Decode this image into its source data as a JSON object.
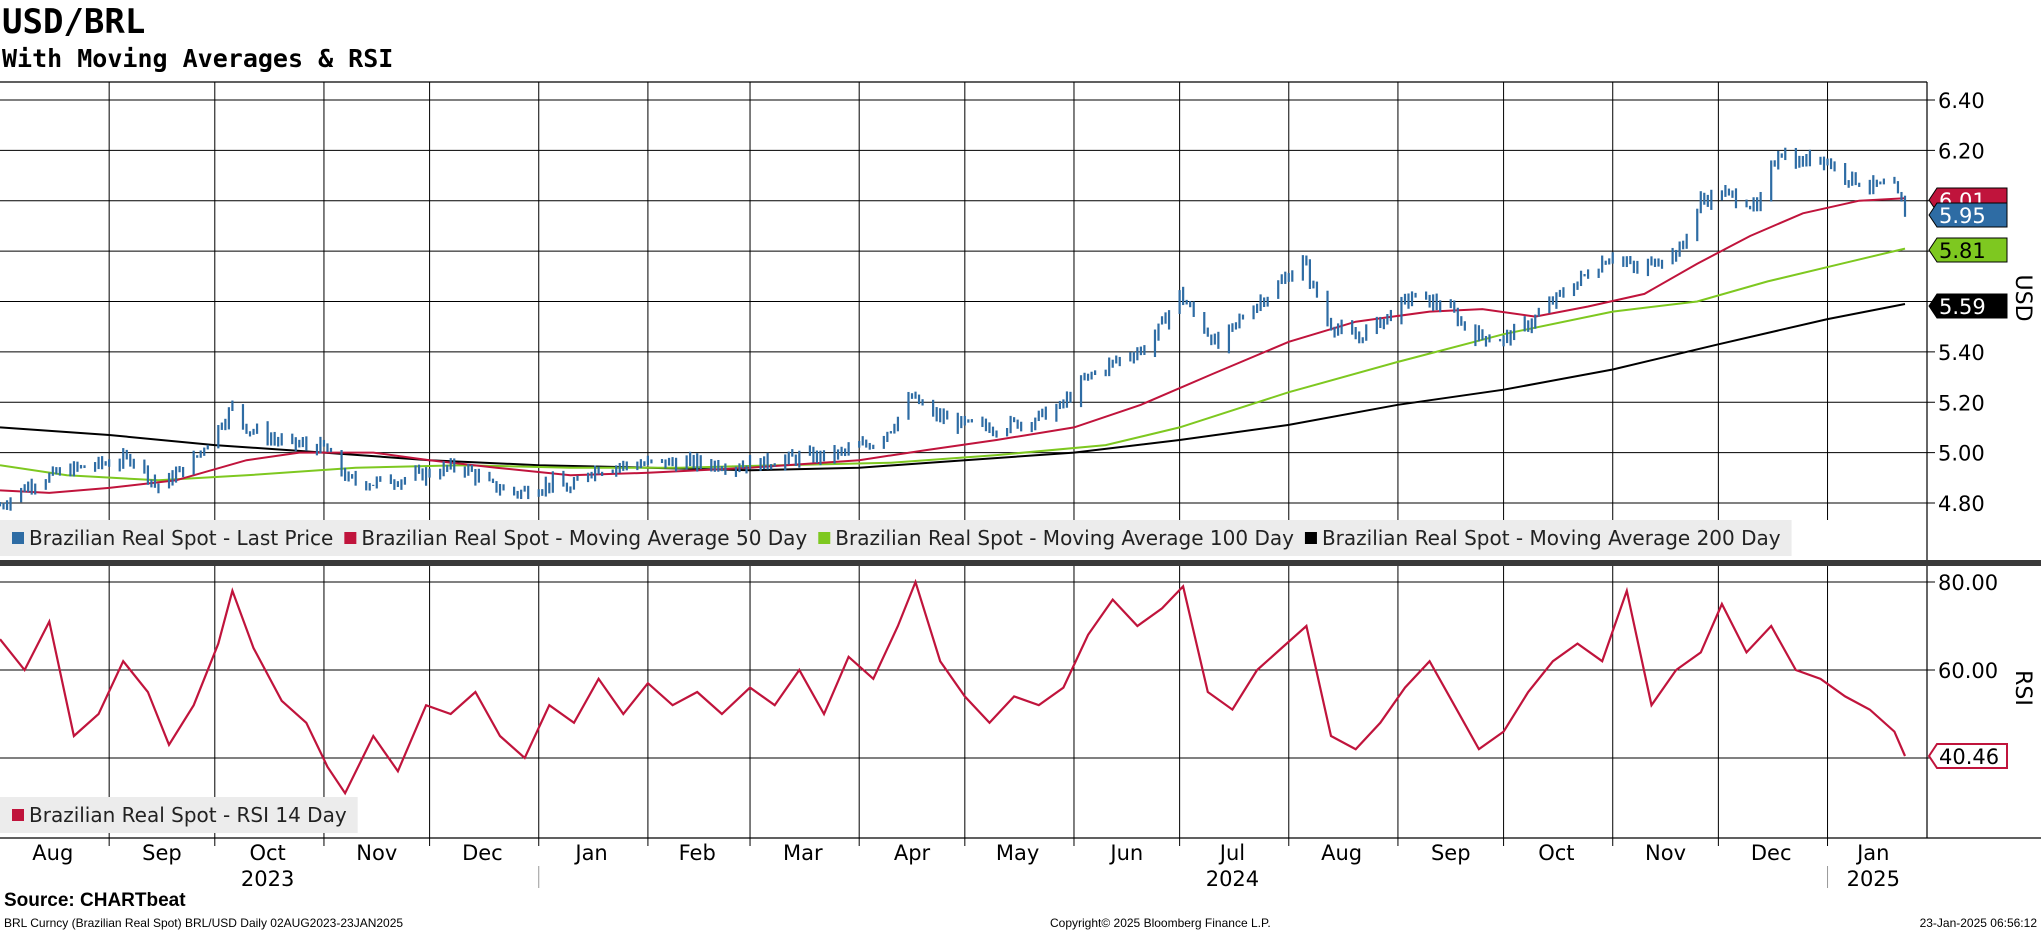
{
  "header": {
    "title": "USD/BRL",
    "subtitle": "With Moving Averages & RSI"
  },
  "footer": {
    "source": "Source: CHARTbeat",
    "meta": "BRL Curncy (Brazilian Real Spot) BRL/USD  Daily 02AUG2023-23JAN2025",
    "copyright": "Copyright© 2025 Bloomberg Finance L.P.",
    "timestamp": "23-Jan-2025 06:56:12"
  },
  "colors": {
    "price": "#2e6ca4",
    "ma50": "#c0143c",
    "ma100": "#7ec820",
    "ma200": "#000000",
    "rsi": "#c0143c"
  },
  "chart_data": [
    {
      "type": "line",
      "ylabel": "USD",
      "ylim": [
        4.65,
        6.48
      ],
      "yticks": [
        "6.40",
        "6.20",
        "5.40",
        "5.20",
        "5.00",
        "4.80"
      ],
      "grid": true,
      "legend_position": "bottom-left",
      "x_range": [
        "2023-08-02",
        "2025-01-23"
      ],
      "x_months": [
        "Aug",
        "Sep",
        "Oct",
        "Nov",
        "Dec",
        "Jan",
        "Feb",
        "Mar",
        "Apr",
        "May",
        "Jun",
        "Jul",
        "Aug",
        "Sep",
        "Oct",
        "Nov",
        "Dec",
        "Jan"
      ],
      "x_years": [
        "2023",
        "2024",
        "2025"
      ],
      "series": [
        {
          "name": "Brazilian Real Spot - Last Price",
          "key": "price",
          "last_label": "5.95",
          "points": [
            [
              "2023-08-01",
              4.79
            ],
            [
              "2023-08-10",
              4.88
            ],
            [
              "2023-08-20",
              4.93
            ],
            [
              "2023-09-01",
              4.96
            ],
            [
              "2023-09-08",
              4.98
            ],
            [
              "2023-09-15",
              4.86
            ],
            [
              "2023-09-25",
              4.97
            ],
            [
              "2023-10-03",
              5.12
            ],
            [
              "2023-10-06",
              5.18
            ],
            [
              "2023-10-10",
              5.1
            ],
            [
              "2023-10-20",
              5.04
            ],
            [
              "2023-11-01",
              5.02
            ],
            [
              "2023-11-08",
              4.89
            ],
            [
              "2023-11-15",
              4.88
            ],
            [
              "2023-11-25",
              4.9
            ],
            [
              "2023-12-01",
              4.92
            ],
            [
              "2023-12-10",
              4.95
            ],
            [
              "2023-12-18",
              4.87
            ],
            [
              "2023-12-26",
              4.84
            ],
            [
              "2024-01-05",
              4.88
            ],
            [
              "2024-01-10",
              4.85
            ],
            [
              "2024-01-15",
              4.93
            ],
            [
              "2024-01-25",
              4.95
            ],
            [
              "2024-02-05",
              4.96
            ],
            [
              "2024-02-15",
              4.96
            ],
            [
              "2024-02-25",
              4.95
            ],
            [
              "2024-03-05",
              4.96
            ],
            [
              "2024-03-15",
              4.98
            ],
            [
              "2024-03-25",
              4.99
            ],
            [
              "2024-04-05",
              5.04
            ],
            [
              "2024-04-10",
              5.1
            ],
            [
              "2024-04-16",
              5.22
            ],
            [
              "2024-04-22",
              5.15
            ],
            [
              "2024-05-01",
              5.11
            ],
            [
              "2024-05-10",
              5.1
            ],
            [
              "2024-05-20",
              5.13
            ],
            [
              "2024-05-28",
              5.18
            ],
            [
              "2024-06-05",
              5.3
            ],
            [
              "2024-06-15",
              5.38
            ],
            [
              "2024-06-22",
              5.42
            ],
            [
              "2024-07-01",
              5.63
            ],
            [
              "2024-07-05",
              5.55
            ],
            [
              "2024-07-12",
              5.42
            ],
            [
              "2024-07-20",
              5.56
            ],
            [
              "2024-07-28",
              5.65
            ],
            [
              "2024-08-05",
              5.76
            ],
            [
              "2024-08-12",
              5.52
            ],
            [
              "2024-08-20",
              5.45
            ],
            [
              "2024-08-30",
              5.55
            ],
            [
              "2024-09-05",
              5.62
            ],
            [
              "2024-09-15",
              5.58
            ],
            [
              "2024-09-22",
              5.47
            ],
            [
              "2024-10-01",
              5.45
            ],
            [
              "2024-10-08",
              5.51
            ],
            [
              "2024-10-15",
              5.6
            ],
            [
              "2024-10-22",
              5.68
            ],
            [
              "2024-11-01",
              5.79
            ],
            [
              "2024-11-08",
              5.72
            ],
            [
              "2024-11-15",
              5.78
            ],
            [
              "2024-11-20",
              5.8
            ],
            [
              "2024-11-26",
              6.0
            ],
            [
              "2024-12-02",
              6.03
            ],
            [
              "2024-12-09",
              6.0
            ],
            [
              "2024-12-12",
              5.96
            ],
            [
              "2024-12-18",
              6.2
            ],
            [
              "2024-12-24",
              6.15
            ],
            [
              "2024-12-30",
              6.18
            ],
            [
              "2025-01-06",
              6.1
            ],
            [
              "2025-01-13",
              6.06
            ],
            [
              "2025-01-20",
              6.05
            ],
            [
              "2025-01-23",
              5.95
            ]
          ]
        },
        {
          "name": "Brazilian Real Spot - Moving Average 50 Day",
          "key": "ma50",
          "last_label": "6.01",
          "points": [
            [
              "2023-08-01",
              4.85
            ],
            [
              "2023-08-15",
              4.84
            ],
            [
              "2023-09-01",
              4.86
            ],
            [
              "2023-09-20",
              4.89
            ],
            [
              "2023-10-10",
              4.97
            ],
            [
              "2023-10-25",
              5.0
            ],
            [
              "2023-11-15",
              5.0
            ],
            [
              "2023-12-01",
              4.97
            ],
            [
              "2023-12-20",
              4.94
            ],
            [
              "2024-01-10",
              4.91
            ],
            [
              "2024-02-01",
              4.92
            ],
            [
              "2024-03-01",
              4.94
            ],
            [
              "2024-04-01",
              4.97
            ],
            [
              "2024-04-20",
              5.01
            ],
            [
              "2024-05-10",
              5.05
            ],
            [
              "2024-06-01",
              5.1
            ],
            [
              "2024-06-20",
              5.19
            ],
            [
              "2024-07-10",
              5.31
            ],
            [
              "2024-08-01",
              5.44
            ],
            [
              "2024-08-20",
              5.52
            ],
            [
              "2024-09-10",
              5.56
            ],
            [
              "2024-09-25",
              5.57
            ],
            [
              "2024-10-10",
              5.54
            ],
            [
              "2024-10-25",
              5.58
            ],
            [
              "2024-11-10",
              5.63
            ],
            [
              "2024-11-25",
              5.75
            ],
            [
              "2024-12-10",
              5.86
            ],
            [
              "2024-12-25",
              5.95
            ],
            [
              "2025-01-10",
              6.0
            ],
            [
              "2025-01-23",
              6.01
            ]
          ]
        },
        {
          "name": "Brazilian Real Spot - Moving Average 100 Day",
          "key": "ma100",
          "last_label": "5.81",
          "points": [
            [
              "2023-08-01",
              4.95
            ],
            [
              "2023-08-20",
              4.91
            ],
            [
              "2023-09-15",
              4.89
            ],
            [
              "2023-10-10",
              4.91
            ],
            [
              "2023-11-10",
              4.94
            ],
            [
              "2023-12-10",
              4.95
            ],
            [
              "2024-01-10",
              4.94
            ],
            [
              "2024-02-10",
              4.94
            ],
            [
              "2024-03-10",
              4.95
            ],
            [
              "2024-04-10",
              4.96
            ],
            [
              "2024-05-10",
              4.99
            ],
            [
              "2024-06-10",
              5.03
            ],
            [
              "2024-07-01",
              5.1
            ],
            [
              "2024-08-01",
              5.24
            ],
            [
              "2024-09-01",
              5.36
            ],
            [
              "2024-10-01",
              5.47
            ],
            [
              "2024-11-01",
              5.56
            ],
            [
              "2024-11-25",
              5.6
            ],
            [
              "2024-12-15",
              5.68
            ],
            [
              "2025-01-05",
              5.75
            ],
            [
              "2025-01-23",
              5.81
            ]
          ]
        },
        {
          "name": "Brazilian Real Spot - Moving Average 200 Day",
          "key": "ma200",
          "last_label": "5.59",
          "points": [
            [
              "2023-08-01",
              5.1
            ],
            [
              "2023-09-01",
              5.07
            ],
            [
              "2023-10-01",
              5.03
            ],
            [
              "2023-11-01",
              5.0
            ],
            [
              "2023-12-01",
              4.97
            ],
            [
              "2024-01-01",
              4.95
            ],
            [
              "2024-02-01",
              4.94
            ],
            [
              "2024-03-01",
              4.93
            ],
            [
              "2024-04-01",
              4.94
            ],
            [
              "2024-05-01",
              4.97
            ],
            [
              "2024-06-01",
              5.0
            ],
            [
              "2024-07-01",
              5.05
            ],
            [
              "2024-08-01",
              5.11
            ],
            [
              "2024-09-01",
              5.19
            ],
            [
              "2024-10-01",
              5.25
            ],
            [
              "2024-11-01",
              5.33
            ],
            [
              "2024-12-01",
              5.43
            ],
            [
              "2025-01-01",
              5.53
            ],
            [
              "2025-01-23",
              5.59
            ]
          ]
        }
      ]
    },
    {
      "type": "line",
      "ylabel": "RSI",
      "ylim": [
        22,
        82
      ],
      "yticks": [
        "80.00",
        "60.00"
      ],
      "grid": true,
      "legend_position": "bottom-left",
      "series": [
        {
          "name": "Brazilian Real Spot - RSI 14 Day",
          "key": "rsi",
          "last_label": "40.46",
          "points": [
            [
              "2023-08-01",
              67
            ],
            [
              "2023-08-08",
              60
            ],
            [
              "2023-08-15",
              71
            ],
            [
              "2023-08-22",
              45
            ],
            [
              "2023-08-29",
              50
            ],
            [
              "2023-09-05",
              62
            ],
            [
              "2023-09-12",
              55
            ],
            [
              "2023-09-18",
              43
            ],
            [
              "2023-09-25",
              52
            ],
            [
              "2023-10-02",
              66
            ],
            [
              "2023-10-06",
              78
            ],
            [
              "2023-10-12",
              65
            ],
            [
              "2023-10-20",
              53
            ],
            [
              "2023-10-27",
              48
            ],
            [
              "2023-11-02",
              38
            ],
            [
              "2023-11-07",
              32
            ],
            [
              "2023-11-15",
              45
            ],
            [
              "2023-11-22",
              37
            ],
            [
              "2023-11-30",
              52
            ],
            [
              "2023-12-07",
              50
            ],
            [
              "2023-12-14",
              55
            ],
            [
              "2023-12-21",
              45
            ],
            [
              "2023-12-28",
              40
            ],
            [
              "2024-01-04",
              52
            ],
            [
              "2024-01-11",
              48
            ],
            [
              "2024-01-18",
              58
            ],
            [
              "2024-01-25",
              50
            ],
            [
              "2024-02-01",
              57
            ],
            [
              "2024-02-08",
              52
            ],
            [
              "2024-02-15",
              55
            ],
            [
              "2024-02-22",
              50
            ],
            [
              "2024-03-01",
              56
            ],
            [
              "2024-03-08",
              52
            ],
            [
              "2024-03-15",
              60
            ],
            [
              "2024-03-22",
              50
            ],
            [
              "2024-03-29",
              63
            ],
            [
              "2024-04-05",
              58
            ],
            [
              "2024-04-12",
              70
            ],
            [
              "2024-04-17",
              80
            ],
            [
              "2024-04-24",
              62
            ],
            [
              "2024-05-01",
              54
            ],
            [
              "2024-05-08",
              48
            ],
            [
              "2024-05-15",
              54
            ],
            [
              "2024-05-22",
              52
            ],
            [
              "2024-05-29",
              56
            ],
            [
              "2024-06-05",
              68
            ],
            [
              "2024-06-12",
              76
            ],
            [
              "2024-06-19",
              70
            ],
            [
              "2024-06-26",
              74
            ],
            [
              "2024-07-02",
              79
            ],
            [
              "2024-07-09",
              55
            ],
            [
              "2024-07-16",
              51
            ],
            [
              "2024-07-23",
              60
            ],
            [
              "2024-07-30",
              65
            ],
            [
              "2024-08-06",
              70
            ],
            [
              "2024-08-13",
              45
            ],
            [
              "2024-08-20",
              42
            ],
            [
              "2024-08-27",
              48
            ],
            [
              "2024-09-03",
              56
            ],
            [
              "2024-09-10",
              62
            ],
            [
              "2024-09-17",
              52
            ],
            [
              "2024-09-24",
              42
            ],
            [
              "2024-10-01",
              46
            ],
            [
              "2024-10-08",
              55
            ],
            [
              "2024-10-15",
              62
            ],
            [
              "2024-10-22",
              66
            ],
            [
              "2024-10-29",
              62
            ],
            [
              "2024-11-05",
              78
            ],
            [
              "2024-11-12",
              52
            ],
            [
              "2024-11-19",
              60
            ],
            [
              "2024-11-26",
              64
            ],
            [
              "2024-12-02",
              75
            ],
            [
              "2024-12-09",
              64
            ],
            [
              "2024-12-16",
              70
            ],
            [
              "2024-12-23",
              60
            ],
            [
              "2024-12-30",
              58
            ],
            [
              "2025-01-06",
              54
            ],
            [
              "2025-01-13",
              51
            ],
            [
              "2025-01-20",
              46
            ],
            [
              "2025-01-23",
              40.46
            ]
          ]
        }
      ]
    }
  ]
}
